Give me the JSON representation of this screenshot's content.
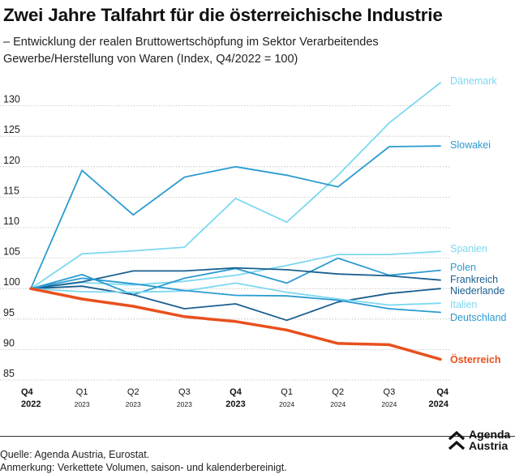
{
  "title": "Zwei Jahre Talfahrt für die österreichische Industrie",
  "subtitle": "– Entwicklung der realen Bruttowertschöpfung im Sektor Verarbeitendes Gewerbe/Herstellung von Waren (Index, Q4/2022 = 100)",
  "footer": {
    "source": "Quelle: Agenda Austria, Eurostat.",
    "note": "Anmerkung: Verkettete Volumen, saison- und kalenderbereinigt."
  },
  "logo": {
    "line1": "Agenda",
    "line2": "Austria"
  },
  "colors": {
    "austria": "#e8501d",
    "light": "#7dd8f0",
    "mid": "#2a9bd1",
    "dark": "#1a5f8f",
    "grid": "#bbbbbb"
  },
  "chart_data": {
    "type": "line",
    "x_ticks": [
      {
        "main": "Q4",
        "sub": "2022",
        "bold": true
      },
      {
        "main": "Q1",
        "sub": "2023",
        "bold": false
      },
      {
        "main": "Q2",
        "sub": "2023",
        "bold": false
      },
      {
        "main": "Q3",
        "sub": "2023",
        "bold": false
      },
      {
        "main": "Q4",
        "sub": "2023",
        "bold": true
      },
      {
        "main": "Q1",
        "sub": "2024",
        "bold": false
      },
      {
        "main": "Q2",
        "sub": "2024",
        "bold": false
      },
      {
        "main": "Q3",
        "sub": "2024",
        "bold": false
      },
      {
        "main": "Q4",
        "sub": "2024",
        "bold": true
      }
    ],
    "ylim": [
      85,
      135
    ],
    "yticks": [
      85,
      90,
      95,
      100,
      105,
      110,
      115,
      120,
      125,
      130
    ],
    "grid": true,
    "series": [
      {
        "name": "Dänemark",
        "color": "#7dd8f0",
        "values": [
          100,
          105.7,
          106.2,
          106.8,
          114.8,
          110.9,
          118.6,
          127.2,
          133.8
        ]
      },
      {
        "name": "Slowakei",
        "color": "#2a9bd1",
        "values": [
          100,
          119.4,
          112.1,
          118.3,
          120.0,
          118.6,
          116.7,
          123.3,
          123.4
        ]
      },
      {
        "name": "Spanien",
        "color": "#7dd8f0",
        "values": [
          100,
          101.0,
          100.6,
          101.2,
          102.2,
          103.8,
          105.6,
          105.6,
          106.1
        ]
      },
      {
        "name": "Polen",
        "color": "#2a9bd1",
        "values": [
          100,
          102.3,
          99.0,
          101.7,
          103.3,
          100.9,
          105.0,
          102.2,
          103.0
        ]
      },
      {
        "name": "Frankreich",
        "color": "#1a5f8f",
        "values": [
          100,
          101.1,
          102.9,
          102.9,
          103.4,
          103.1,
          102.4,
          102.1,
          101.4
        ]
      },
      {
        "name": "Niederlande",
        "color": "#1a5f8f",
        "values": [
          100,
          100.4,
          99.0,
          96.7,
          97.5,
          94.8,
          97.8,
          99.2,
          100.0
        ]
      },
      {
        "name": "Italien",
        "color": "#7dd8f0",
        "values": [
          100,
          99.5,
          99.4,
          99.6,
          100.9,
          99.4,
          98.3,
          97.3,
          97.6
        ]
      },
      {
        "name": "Deutschland",
        "color": "#2a9bd1",
        "values": [
          100,
          101.7,
          100.8,
          99.7,
          98.9,
          98.8,
          98.1,
          96.7,
          96.1
        ]
      },
      {
        "name": "Österreich",
        "color": "#e8501d",
        "values": [
          100,
          98.3,
          97.1,
          95.4,
          94.6,
          93.2,
          91.0,
          90.8,
          88.4
        ]
      }
    ]
  }
}
